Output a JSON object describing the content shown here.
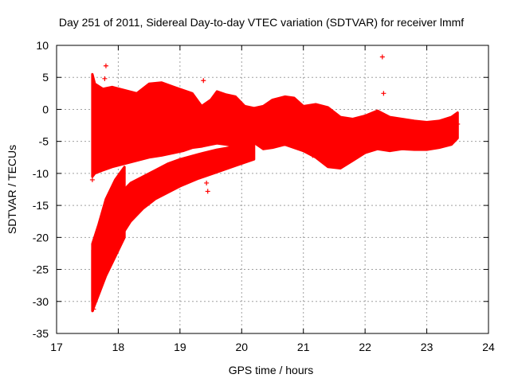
{
  "chart_data": {
    "type": "scatter",
    "title": "Day 251 of 2011, Sidereal Day-to-day VTEC variation (SDTVAR) for receiver lmmf",
    "xlabel": "GPS time / hours",
    "ylabel": "SDTVAR / TECUs",
    "xlim": [
      17,
      24
    ],
    "ylim": [
      -35,
      10
    ],
    "xticks": [
      17,
      18,
      19,
      20,
      21,
      22,
      23,
      24
    ],
    "yticks": [
      10,
      5,
      0,
      -5,
      -10,
      -15,
      -20,
      -25,
      -30,
      -35
    ],
    "grid": true,
    "color": "#ff0000",
    "marker": "plus",
    "bands": {
      "main_envelope": {
        "x": [
          17.58,
          17.62,
          17.75,
          17.9,
          18.1,
          18.3,
          18.5,
          18.7,
          18.9,
          19.05,
          19.2,
          19.35,
          19.5,
          19.6,
          19.75,
          19.9,
          20.05,
          20.2,
          20.35,
          20.5,
          20.7,
          20.85,
          21.0,
          21.2,
          21.4,
          21.6,
          21.8,
          22.0,
          22.2,
          22.4,
          22.6,
          22.8,
          23.0,
          23.2,
          23.4,
          23.5
        ],
        "upper": [
          5.5,
          4.0,
          3.2,
          3.5,
          3.0,
          2.5,
          4.0,
          4.2,
          3.5,
          3.0,
          2.5,
          0.5,
          1.5,
          2.8,
          2.3,
          2.0,
          0.5,
          0.2,
          0.5,
          1.5,
          2.0,
          1.8,
          0.5,
          0.8,
          0.3,
          -1.2,
          -1.5,
          -1.0,
          -0.2,
          -1.2,
          -1.5,
          -1.8,
          -2.0,
          -1.8,
          -1.2,
          -0.5
        ],
        "lower": [
          -10.5,
          -10.0,
          -9.5,
          -9.0,
          -8.5,
          -8.0,
          -7.5,
          -7.2,
          -6.8,
          -6.5,
          -6.0,
          -5.8,
          -5.5,
          -5.3,
          -5.5,
          -5.8,
          -5.5,
          -5.2,
          -6.2,
          -6.0,
          -5.5,
          -6.0,
          -6.5,
          -7.5,
          -9.0,
          -9.2,
          -8.0,
          -6.8,
          -6.2,
          -6.5,
          -6.2,
          -6.3,
          -6.3,
          -6.0,
          -5.5,
          -4.5
        ]
      },
      "branch_upper": {
        "x": [
          17.58,
          17.7,
          17.85,
          18.0,
          18.2,
          18.4,
          18.6,
          18.8,
          19.0,
          19.3,
          19.6,
          19.9,
          20.2
        ],
        "upper": [
          -22.0,
          -18.5,
          -15.5,
          -13.5,
          -11.5,
          -10.5,
          -9.5,
          -8.5,
          -7.8,
          -7.0,
          -6.3,
          -5.8,
          -5.5
        ],
        "lower": [
          -30.0,
          -27.5,
          -23.5,
          -20.5,
          -17.5,
          -15.5,
          -14.0,
          -13.0,
          -12.0,
          -10.8,
          -9.8,
          -8.8,
          -7.8
        ]
      },
      "branch_lower": {
        "x": [
          17.58,
          17.68,
          17.8,
          17.95,
          18.1
        ],
        "upper": [
          -21.0,
          -18.0,
          -14.0,
          -11.0,
          -9.0
        ],
        "lower": [
          -31.5,
          -29.0,
          -26.0,
          -23.0,
          -20.0
        ]
      }
    },
    "outliers": [
      {
        "x": 17.8,
        "y": 6.8
      },
      {
        "x": 17.78,
        "y": 4.8
      },
      {
        "x": 22.28,
        "y": 8.2
      },
      {
        "x": 22.3,
        "y": 2.5
      },
      {
        "x": 19.45,
        "y": -12.8
      },
      {
        "x": 19.43,
        "y": -11.5
      },
      {
        "x": 17.58,
        "y": -11.0
      },
      {
        "x": 17.6,
        "y": -31.2
      },
      {
        "x": 21.15,
        "y": -7.2
      },
      {
        "x": 23.5,
        "y": -2.3
      },
      {
        "x": 19.38,
        "y": 4.5
      }
    ]
  }
}
